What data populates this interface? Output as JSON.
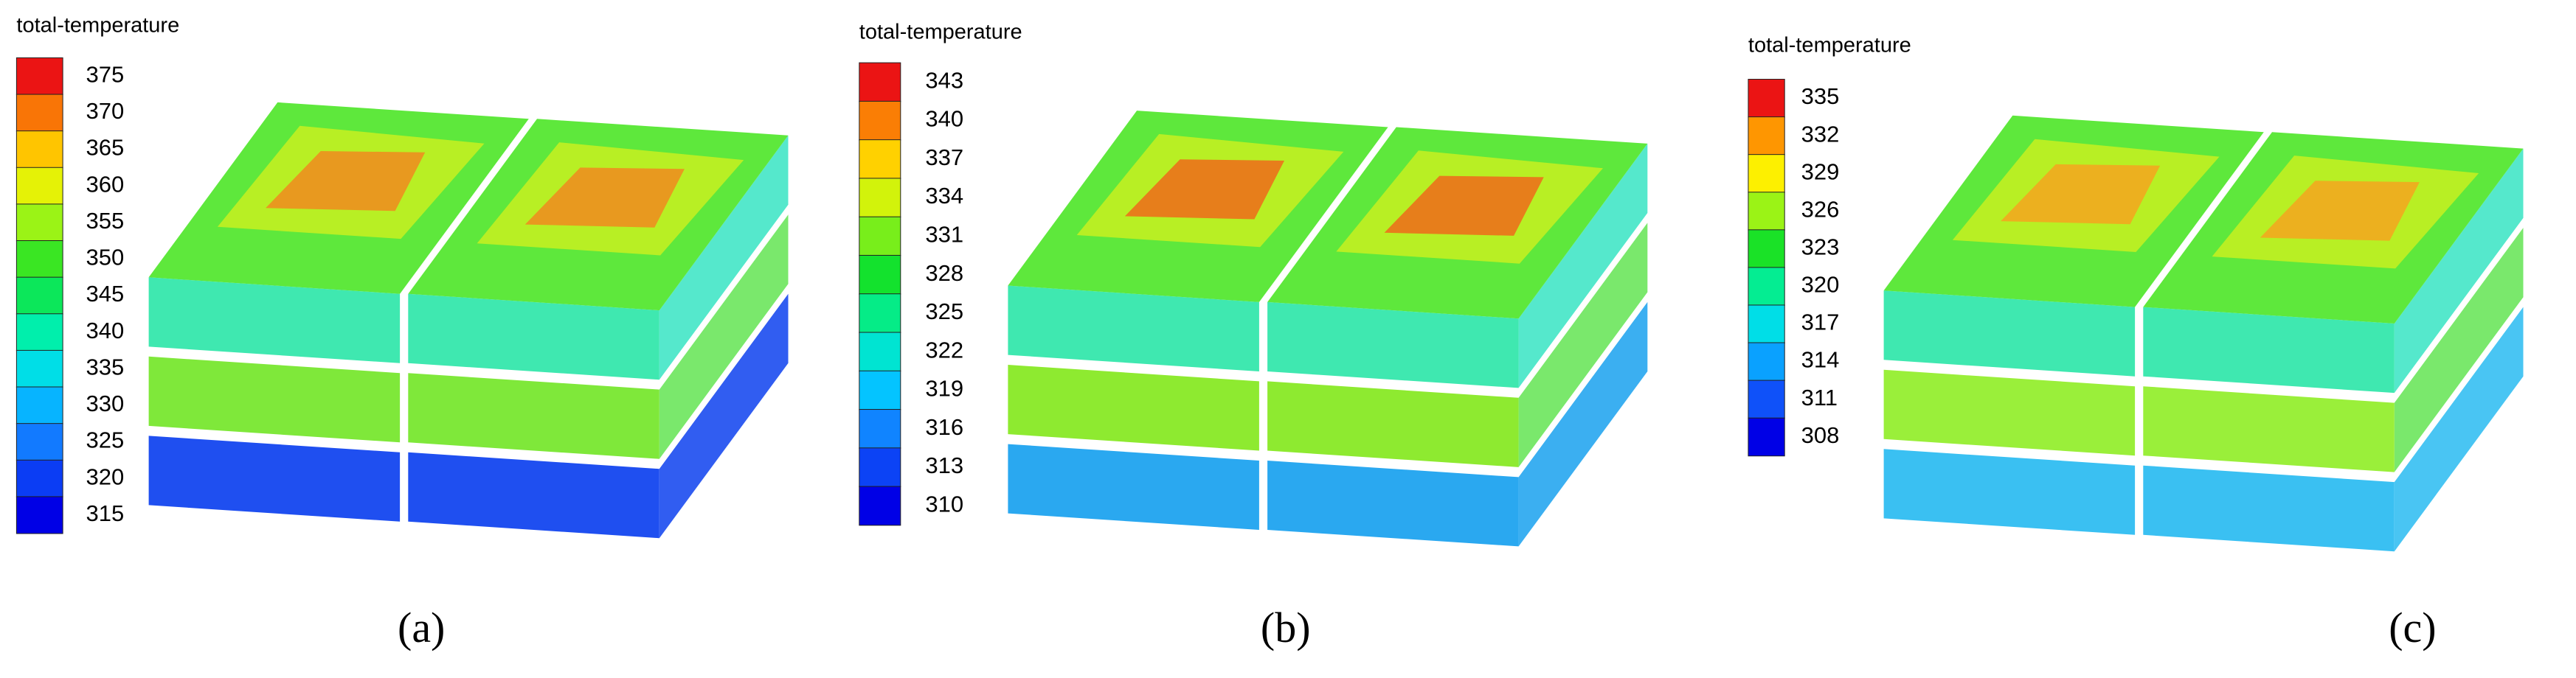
{
  "panels": [
    {
      "legend_title": "total-temperature",
      "levels": [
        375,
        370,
        365,
        360,
        355,
        350,
        345,
        340,
        335,
        330,
        325,
        320,
        315
      ],
      "caption": "(a)"
    },
    {
      "legend_title": "total-temperature",
      "levels": [
        343,
        340,
        337,
        334,
        331,
        328,
        325,
        322,
        319,
        316,
        313,
        310
      ],
      "caption": "(b)"
    },
    {
      "legend_title": "total-temperature",
      "levels": [
        335,
        332,
        329,
        326,
        323,
        320,
        317,
        314,
        311,
        308
      ],
      "caption": "(c)"
    }
  ]
}
